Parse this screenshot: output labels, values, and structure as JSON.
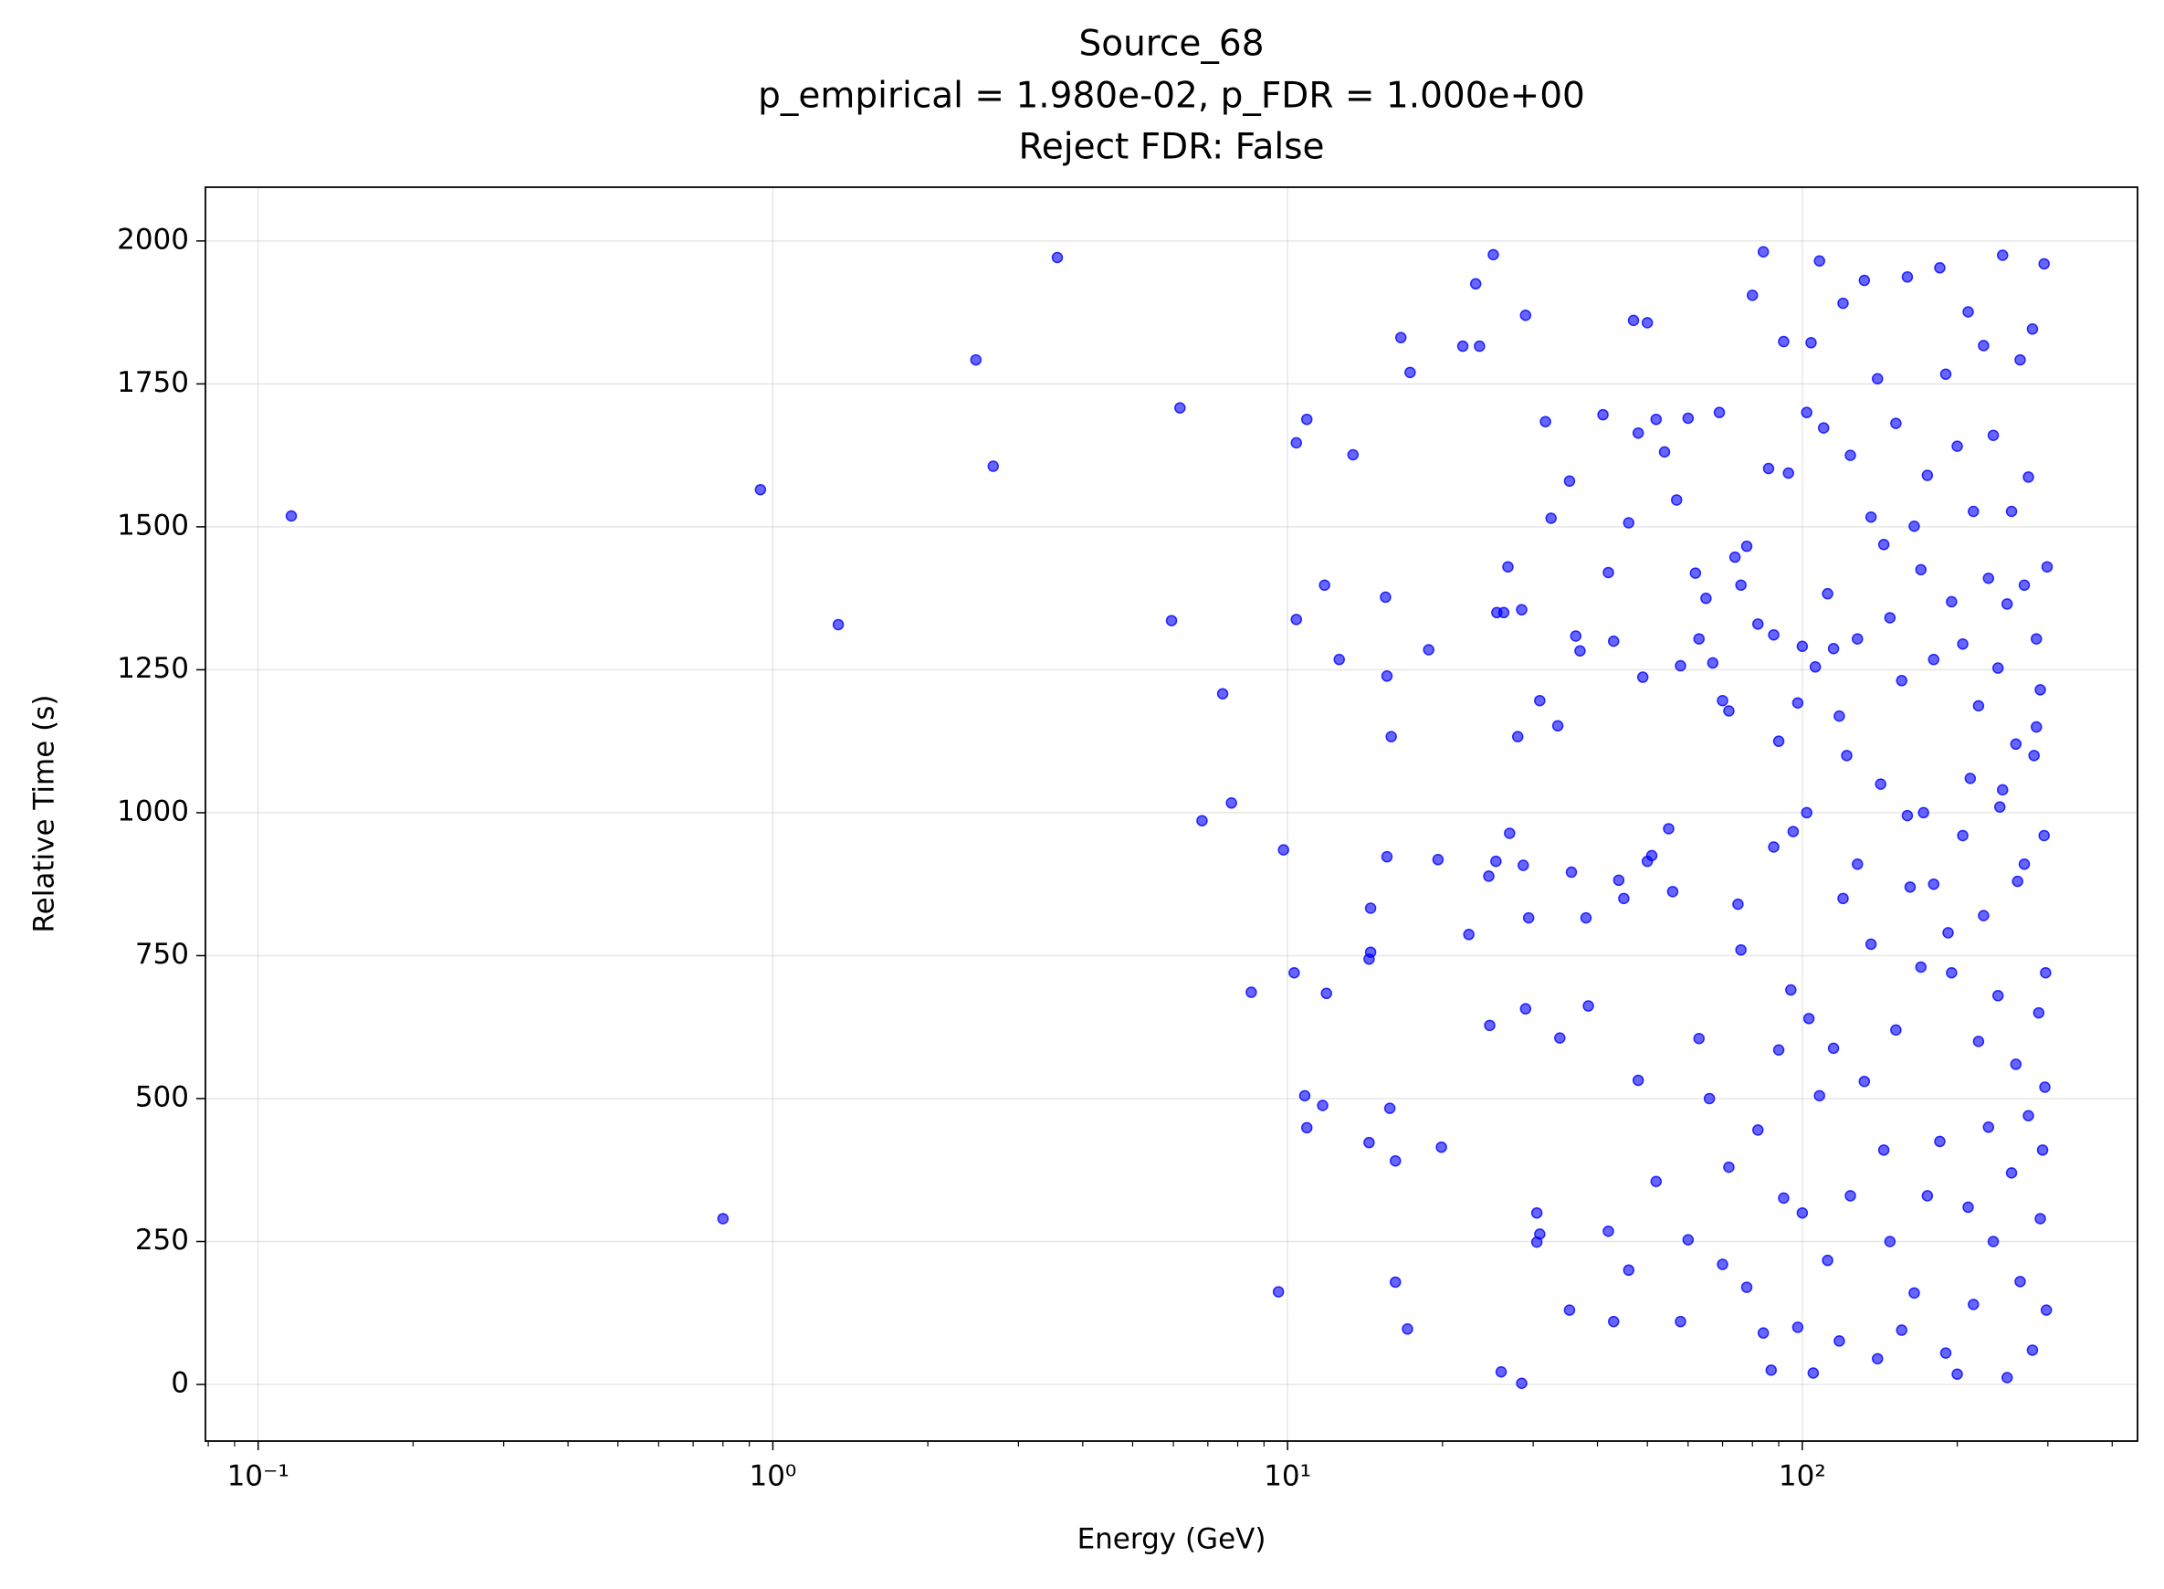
{
  "chart_data": {
    "type": "scatter",
    "title_lines": [
      "Source_68",
      "p_empirical = 1.980e-02, p_FDR = 1.000e+00",
      "Reject FDR: False"
    ],
    "x_label": "Energy (GeV)",
    "y_label": "Relative Time (s)",
    "xscale": "log",
    "grid": true,
    "xlim": [
      0.079,
      448
    ],
    "ylim": [
      -99,
      2094
    ],
    "xticks": [
      {
        "value": 0.1,
        "label": "10⁻¹"
      },
      {
        "value": 1,
        "label": "10⁰"
      },
      {
        "value": 10,
        "label": "10¹"
      },
      {
        "value": 100,
        "label": "10²"
      }
    ],
    "xminorticks": [
      0.08,
      0.09,
      0.2,
      0.3,
      0.4,
      0.5,
      0.6,
      0.7,
      0.8,
      0.9,
      2,
      3,
      4,
      5,
      6,
      7,
      8,
      9,
      20,
      30,
      40,
      50,
      60,
      70,
      80,
      90,
      200,
      300,
      400
    ],
    "yticks": [
      0,
      250,
      500,
      750,
      1000,
      1250,
      1500,
      1750,
      2000
    ],
    "series": [
      {
        "color": "#0000ff",
        "x": [
          0.116,
          0.946,
          0.8,
          1.34,
          2.48,
          2.68,
          3.57,
          6.18,
          5.95,
          7.48,
          7.78,
          6.82,
          9.82,
          8.5,
          9.6,
          10.9,
          10.4,
          10.4,
          10.3,
          10.8,
          10.9,
          11.7,
          11.8,
          11.9,
          12.6,
          13.4,
          14.5,
          14.5,
          14.4,
          14.4,
          15.5,
          15.6,
          15.9,
          15.6,
          15.8,
          16.2,
          16.2,
          16.6,
          17.3,
          17.1,
          18.8,
          19.6,
          19.9,
          21.9,
          23.6,
          23.2,
          25.1,
          22.5,
          24.6,
          24.7,
          25.4,
          25.5,
          26.3,
          26.8,
          27,
          28,
          28.5,
          28.7,
          29,
          29,
          29.4,
          26,
          28.5,
          30.5,
          30.9,
          30.5,
          30.9,
          31.7,
          32.5,
          33.5,
          33.8,
          35.3,
          35.6,
          35.3,
          36.3,
          37,
          38,
          38.4,
          41,
          42,
          43,
          44,
          45,
          46,
          47,
          48,
          49,
          50,
          51,
          52,
          54,
          56,
          57,
          58,
          60,
          62,
          63,
          65,
          67,
          69,
          70,
          72,
          74,
          76,
          78,
          80,
          82,
          84,
          86,
          88,
          90,
          92,
          94,
          96,
          98,
          100,
          102,
          104,
          106,
          108,
          110,
          112,
          115,
          118,
          120,
          124,
          128,
          132,
          136,
          140,
          144,
          148,
          152,
          156,
          160,
          165,
          170,
          175,
          180,
          185,
          190,
          195,
          200,
          205,
          210,
          215,
          220,
          225,
          230,
          235,
          240,
          245,
          250,
          255,
          260,
          265,
          270,
          275,
          280,
          285,
          290,
          295,
          42,
          43,
          46,
          48,
          50,
          52,
          55,
          58,
          60,
          63,
          66,
          70,
          72,
          75,
          78,
          82,
          84,
          87,
          90,
          92,
          95,
          98,
          100,
          103,
          105,
          108,
          112,
          115,
          118,
          120,
          124,
          128,
          132,
          136,
          140,
          144,
          148,
          152,
          156,
          160,
          165,
          170,
          175,
          180,
          185,
          190,
          195,
          200,
          205,
          210,
          215,
          220,
          225,
          230,
          235,
          240,
          245,
          250,
          255,
          260,
          265,
          270,
          275,
          280,
          285,
          290,
          295,
          297,
          298,
          299,
          296,
          293,
          288,
          282,
          262,
          242,
          212,
          192,
          172,
          162,
          142,
          122,
          102,
          88,
          76
        ],
        "values": [
          1519,
          1565,
          290,
          1329,
          1792,
          1606,
          1971,
          1708,
          1336,
          1208,
          1017,
          986,
          935,
          686,
          162,
          1688,
          1647,
          1338,
          720,
          505,
          449,
          488,
          1398,
          684,
          1268,
          1626,
          833,
          756,
          744,
          423,
          1377,
          1239,
          1133,
          923,
          483,
          179,
          391,
          1831,
          1770,
          97,
          1285,
          918,
          415,
          1816,
          1816,
          1925,
          1976,
          787,
          889,
          628,
          915,
          1350,
          1350,
          1430,
          964,
          1133,
          1355,
          908,
          657,
          1870,
          816,
          22,
          2,
          300,
          263,
          249,
          1196,
          1684,
          1515,
          1152,
          606,
          1580,
          896,
          130,
          1309,
          1283,
          816,
          662,
          1696,
          1420,
          1300,
          882,
          850,
          1507,
          1861,
          1664,
          1237,
          1857,
          925,
          1688,
          1631,
          862,
          1547,
          1257,
          1690,
          1419,
          1304,
          1375,
          1262,
          1700,
          1196,
          1178,
          1447,
          1398,
          1466,
          1905,
          1330,
          1981,
          1602,
          1311,
          1125,
          1824,
          1594,
          967,
          1192,
          1291,
          1700,
          1822,
          1255,
          1965,
          1673,
          1383,
          1287,
          1169,
          1891,
          1625,
          1304,
          1931,
          1517,
          1759,
          1469,
          1341,
          1681,
          1231,
          1937,
          1501,
          1425,
          1590,
          1268,
          1953,
          1767,
          1369,
          1641,
          1295,
          1876,
          1527,
          1187,
          1817,
          1410,
          1660,
          1253,
          1975,
          1365,
          1527,
          1120,
          1792,
          1398,
          1587,
          1846,
          1304,
          1215,
          1960,
          268,
          110,
          200,
          532,
          915,
          355,
          972,
          110,
          253,
          605,
          500,
          210,
          380,
          840,
          170,
          445,
          90,
          25,
          585,
          326,
          690,
          100,
          300,
          640,
          20,
          505,
          217,
          588,
          76,
          850,
          330,
          910,
          530,
          770,
          45,
          410,
          250,
          620,
          95,
          995,
          160,
          730,
          330,
          875,
          425,
          55,
          720,
          18,
          960,
          310,
          140,
          600,
          820,
          450,
          250,
          680,
          1040,
          12,
          370,
          560,
          180,
          910,
          470,
          60,
          1150,
          290,
          960,
          720,
          130,
          1430,
          520,
          410,
          650,
          1100,
          880,
          1010,
          1060,
          790,
          1000,
          870,
          1050,
          1100,
          1000,
          940,
          760
        ]
      }
    ]
  }
}
